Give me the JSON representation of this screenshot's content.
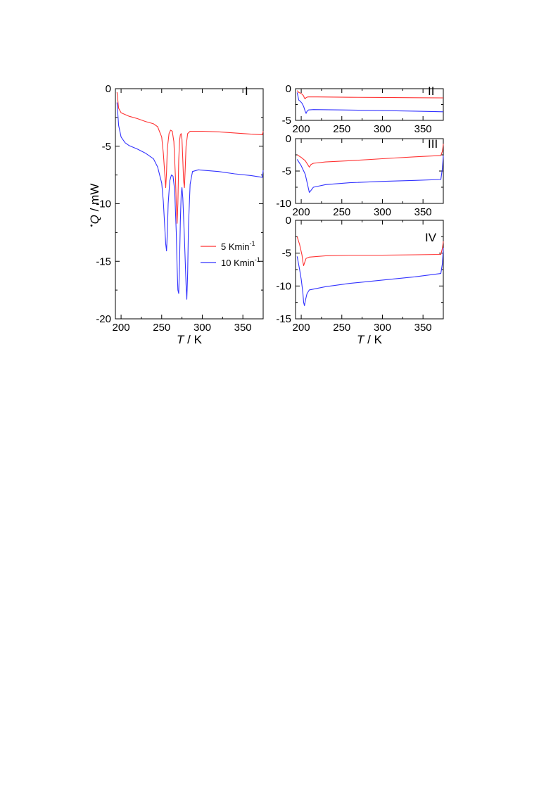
{
  "chart_data": [
    {
      "panel": "I",
      "type": "line",
      "xlabel_italic": "T",
      "xlabel_unit": " / K",
      "ylabel_italic": "Q",
      "ylabel_unit": " / mW",
      "xlim": [
        193,
        375
      ],
      "ylim": [
        -20,
        0
      ],
      "xticks": [
        200,
        250,
        300,
        350
      ],
      "yticks": [
        0,
        -5,
        -10,
        -15,
        -20
      ],
      "legend": {
        "placement": "center",
        "entries": [
          {
            "value": "5 Kmin",
            "sup": "-1",
            "color": "#ff3333"
          },
          {
            "value": "10 Kmin",
            "sup": "-1",
            "color": "#3333ff"
          }
        ]
      },
      "series": [
        {
          "name": "5 Kmin-1",
          "color": "#ff3333",
          "points": [
            [
              195,
              -0.3
            ],
            [
              197,
              -1.7
            ],
            [
              200,
              -2.1
            ],
            [
              210,
              -2.4
            ],
            [
              220,
              -2.6
            ],
            [
              230,
              -2.85
            ],
            [
              240,
              -3.05
            ],
            [
              245,
              -3.3
            ],
            [
              250,
              -4.2
            ],
            [
              252,
              -5.6
            ],
            [
              254,
              -7.6
            ],
            [
              255,
              -8.6
            ],
            [
              256,
              -7.2
            ],
            [
              257,
              -5.2
            ],
            [
              259,
              -3.9
            ],
            [
              261,
              -3.6
            ],
            [
              263,
              -3.7
            ],
            [
              265,
              -4.6
            ],
            [
              267,
              -7.8
            ],
            [
              268,
              -10.0
            ],
            [
              269,
              -11.7
            ],
            [
              270,
              -10.0
            ],
            [
              271,
              -6.2
            ],
            [
              272,
              -4.5
            ],
            [
              273,
              -4.0
            ],
            [
              274,
              -3.9
            ],
            [
              275,
              -4.4
            ],
            [
              276,
              -6.2
            ],
            [
              277,
              -8.0
            ],
            [
              278,
              -8.6
            ],
            [
              279,
              -7.0
            ],
            [
              280,
              -5.0
            ],
            [
              282,
              -3.9
            ],
            [
              285,
              -3.7
            ],
            [
              300,
              -3.7
            ],
            [
              320,
              -3.75
            ],
            [
              340,
              -3.85
            ],
            [
              360,
              -3.95
            ],
            [
              374,
              -4.0
            ],
            [
              375,
              -3.7
            ]
          ]
        },
        {
          "name": "10 Kmin-1",
          "color": "#3333ff",
          "points": [
            [
              195,
              -1.2
            ],
            [
              197,
              -3.2
            ],
            [
              200,
              -4.2
            ],
            [
              205,
              -4.7
            ],
            [
              210,
              -4.95
            ],
            [
              220,
              -5.25
            ],
            [
              230,
              -5.6
            ],
            [
              240,
              -6.1
            ],
            [
              245,
              -6.8
            ],
            [
              250,
              -8.2
            ],
            [
              252,
              -9.8
            ],
            [
              254,
              -12.3
            ],
            [
              255,
              -13.5
            ],
            [
              256,
              -14.1
            ],
            [
              257,
              -12.5
            ],
            [
              258,
              -10.0
            ],
            [
              260,
              -8.0
            ],
            [
              262,
              -7.5
            ],
            [
              264,
              -7.6
            ],
            [
              266,
              -8.8
            ],
            [
              268,
              -12.5
            ],
            [
              269,
              -15.5
            ],
            [
              270,
              -17.5
            ],
            [
              271,
              -17.8
            ],
            [
              272,
              -15.0
            ],
            [
              273,
              -11.5
            ],
            [
              274,
              -9.2
            ],
            [
              275,
              -8.6
            ],
            [
              276,
              -9.5
            ],
            [
              278,
              -13.0
            ],
            [
              280,
              -17.0
            ],
            [
              281,
              -18.3
            ],
            [
              282,
              -16.0
            ],
            [
              283,
              -12.0
            ],
            [
              285,
              -8.3
            ],
            [
              288,
              -7.2
            ],
            [
              295,
              -7.05
            ],
            [
              320,
              -7.2
            ],
            [
              340,
              -7.4
            ],
            [
              360,
              -7.55
            ],
            [
              374,
              -7.7
            ],
            [
              375,
              -7.1
            ]
          ]
        }
      ]
    },
    {
      "panel": "II",
      "type": "line",
      "xlim": [
        193,
        375
      ],
      "ylim": [
        -5,
        0
      ],
      "xticks": [
        200,
        250,
        300,
        350
      ],
      "yticks": [
        0,
        -5
      ],
      "series": [
        {
          "name": "5 Kmin-1",
          "color": "#ff3333",
          "points": [
            [
              195,
              -0.3
            ],
            [
              197,
              -0.6
            ],
            [
              199,
              -0.7
            ],
            [
              201,
              -0.85
            ],
            [
              203,
              -1.15
            ],
            [
              204,
              -1.5
            ],
            [
              205,
              -1.6
            ],
            [
              206,
              -1.4
            ],
            [
              208,
              -1.3
            ],
            [
              220,
              -1.3
            ],
            [
              260,
              -1.35
            ],
            [
              300,
              -1.38
            ],
            [
              340,
              -1.42
            ],
            [
              375,
              -1.45
            ]
          ]
        },
        {
          "name": "10 Kmin-1",
          "color": "#3333ff",
          "points": [
            [
              195,
              -0.6
            ],
            [
              197,
              -1.8
            ],
            [
              199,
              -2.0
            ],
            [
              201,
              -2.3
            ],
            [
              203,
              -2.8
            ],
            [
              205,
              -3.6
            ],
            [
              206,
              -3.9
            ],
            [
              207,
              -3.6
            ],
            [
              209,
              -3.35
            ],
            [
              215,
              -3.3
            ],
            [
              250,
              -3.35
            ],
            [
              300,
              -3.45
            ],
            [
              340,
              -3.55
            ],
            [
              375,
              -3.65
            ]
          ]
        }
      ]
    },
    {
      "panel": "III",
      "type": "line",
      "xlim": [
        193,
        375
      ],
      "ylim": [
        -10,
        0
      ],
      "xticks": [
        200,
        250,
        300,
        350
      ],
      "yticks": [
        0,
        -5,
        -10
      ],
      "series": [
        {
          "name": "5 Kmin-1",
          "color": "#ff3333",
          "points": [
            [
              195,
              -2.5
            ],
            [
              200,
              -2.9
            ],
            [
              205,
              -3.4
            ],
            [
              208,
              -4.0
            ],
            [
              210,
              -4.4
            ],
            [
              212,
              -4.0
            ],
            [
              215,
              -3.8
            ],
            [
              230,
              -3.6
            ],
            [
              260,
              -3.4
            ],
            [
              300,
              -3.1
            ],
            [
              340,
              -2.8
            ],
            [
              372,
              -2.6
            ],
            [
              374,
              -1.9
            ],
            [
              375,
              -0.8
            ]
          ]
        },
        {
          "name": "10 Kmin-1",
          "color": "#3333ff",
          "points": [
            [
              195,
              -3.2
            ],
            [
              200,
              -4.2
            ],
            [
              205,
              -5.5
            ],
            [
              208,
              -7.2
            ],
            [
              210,
              -8.3
            ],
            [
              212,
              -8.0
            ],
            [
              215,
              -7.5
            ],
            [
              230,
              -7.1
            ],
            [
              260,
              -6.8
            ],
            [
              300,
              -6.6
            ],
            [
              340,
              -6.45
            ],
            [
              372,
              -6.3
            ],
            [
              374,
              -4.5
            ],
            [
              375,
              -2.6
            ]
          ]
        }
      ]
    },
    {
      "panel": "IV",
      "type": "line",
      "xlim": [
        193,
        375
      ],
      "ylim": [
        -15,
        0
      ],
      "xticks": [
        200,
        250,
        300,
        350
      ],
      "yticks": [
        0,
        -5,
        -10,
        -15
      ],
      "series": [
        {
          "name": "5 Kmin-1",
          "color": "#ff3333",
          "points": [
            [
              195,
              -2.5
            ],
            [
              198,
              -3.7
            ],
            [
              201,
              -5.3
            ],
            [
              202,
              -6.3
            ],
            [
              203,
              -6.9
            ],
            [
              204,
              -6.5
            ],
            [
              206,
              -5.8
            ],
            [
              210,
              -5.6
            ],
            [
              230,
              -5.4
            ],
            [
              260,
              -5.3
            ],
            [
              300,
              -5.3
            ],
            [
              340,
              -5.25
            ],
            [
              372,
              -5.2
            ],
            [
              374,
              -4.2
            ],
            [
              375,
              -3.2
            ]
          ]
        },
        {
          "name": "10 Kmin-1",
          "color": "#3333ff",
          "points": [
            [
              195,
              -5.5
            ],
            [
              198,
              -7.5
            ],
            [
              200,
              -9.0
            ],
            [
              202,
              -11.0
            ],
            [
              203,
              -12.5
            ],
            [
              204,
              -13.0
            ],
            [
              205,
              -12.3
            ],
            [
              207,
              -11.2
            ],
            [
              210,
              -10.6
            ],
            [
              230,
              -10.1
            ],
            [
              260,
              -9.6
            ],
            [
              300,
              -9.1
            ],
            [
              340,
              -8.6
            ],
            [
              372,
              -8.1
            ],
            [
              374,
              -6.5
            ],
            [
              375,
              -4.2
            ]
          ]
        }
      ]
    }
  ]
}
